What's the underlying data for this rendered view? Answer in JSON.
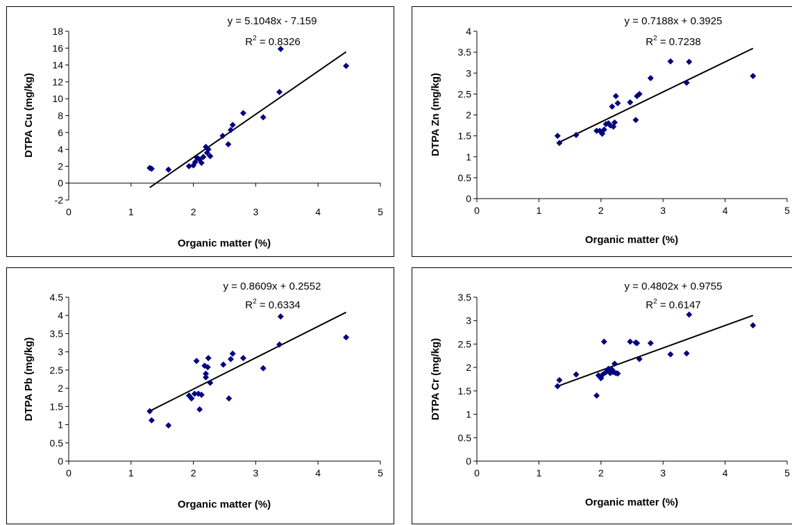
{
  "chart_data": [
    {
      "type": "scatter",
      "xlabel": "Organic matter (%)",
      "ylabel": "DTPA Cu (mg/kg)",
      "xlim": [
        0,
        5
      ],
      "ylim": [
        -2,
        18
      ],
      "xticks": [
        "0",
        "1",
        "2",
        "3",
        "4",
        "5"
      ],
      "yticks": [
        "-2",
        "0",
        "2",
        "4",
        "6",
        "8",
        "10",
        "12",
        "14",
        "16",
        "18"
      ],
      "equation": "y = 5.1048x - 7.159",
      "r2_label": "R",
      "r2_value": " = 0.8326",
      "trendline": {
        "slope": 5.1048,
        "intercept": -7.159,
        "x_range": [
          1.3,
          4.45
        ]
      },
      "points": [
        [
          1.3,
          1.8
        ],
        [
          1.33,
          1.7
        ],
        [
          1.6,
          1.6
        ],
        [
          1.93,
          2.0
        ],
        [
          2.0,
          2.1
        ],
        [
          2.03,
          2.5
        ],
        [
          2.06,
          3.0
        ],
        [
          2.1,
          2.8
        ],
        [
          2.13,
          2.4
        ],
        [
          2.16,
          3.1
        ],
        [
          2.2,
          4.3
        ],
        [
          2.22,
          3.6
        ],
        [
          2.24,
          4.0
        ],
        [
          2.27,
          3.2
        ],
        [
          2.47,
          5.6
        ],
        [
          2.56,
          4.6
        ],
        [
          2.6,
          6.3
        ],
        [
          2.63,
          6.9
        ],
        [
          2.8,
          8.3
        ],
        [
          3.12,
          7.8
        ],
        [
          3.38,
          10.8
        ],
        [
          3.4,
          15.9
        ],
        [
          4.45,
          13.9
        ]
      ],
      "color": "#000080",
      "trend_color": "#000000",
      "grid": false
    },
    {
      "type": "scatter",
      "xlabel": "Organic matter (%)",
      "ylabel": "DTPA Zn (mg/kg)",
      "xlim": [
        0,
        5
      ],
      "ylim": [
        0,
        4
      ],
      "xticks": [
        "0",
        "1",
        "2",
        "3",
        "4",
        "5"
      ],
      "yticks": [
        "0",
        "0.5",
        "1",
        "1.5",
        "2",
        "2.5",
        "3",
        "3.5",
        "4"
      ],
      "equation": "y = 0.7188x + 0.3925",
      "r2_label": "R",
      "r2_value": " = 0.7238",
      "trendline": {
        "slope": 0.7188,
        "intercept": 0.3925,
        "x_range": [
          1.3,
          4.45
        ]
      },
      "points": [
        [
          1.3,
          1.5
        ],
        [
          1.33,
          1.33
        ],
        [
          1.6,
          1.52
        ],
        [
          1.93,
          1.62
        ],
        [
          1.98,
          1.62
        ],
        [
          2.02,
          1.55
        ],
        [
          2.05,
          1.65
        ],
        [
          2.08,
          1.78
        ],
        [
          2.12,
          1.8
        ],
        [
          2.15,
          1.75
        ],
        [
          2.18,
          2.2
        ],
        [
          2.2,
          1.72
        ],
        [
          2.22,
          1.82
        ],
        [
          2.24,
          2.45
        ],
        [
          2.27,
          2.28
        ],
        [
          2.47,
          2.3
        ],
        [
          2.56,
          1.88
        ],
        [
          2.58,
          2.45
        ],
        [
          2.62,
          2.5
        ],
        [
          2.8,
          2.88
        ],
        [
          3.12,
          3.28
        ],
        [
          3.38,
          2.77
        ],
        [
          3.42,
          3.27
        ],
        [
          4.45,
          2.93
        ]
      ],
      "color": "#000080",
      "trend_color": "#000000",
      "grid": false
    },
    {
      "type": "scatter",
      "xlabel": "Organic matter (%)",
      "ylabel": "DTPA Pb (mg/kg)",
      "xlim": [
        0,
        5
      ],
      "ylim": [
        0,
        4.5
      ],
      "xticks": [
        "0",
        "1",
        "2",
        "3",
        "4",
        "5"
      ],
      "yticks": [
        "0",
        "0.5",
        "1",
        "1.5",
        "2",
        "2.5",
        "3",
        "3.5",
        "4",
        "4.5"
      ],
      "equation": "y = 0.8609x + 0.2552",
      "r2_label": "R",
      "r2_value": " = 0.6334",
      "trendline": {
        "slope": 0.8609,
        "intercept": 0.2552,
        "x_range": [
          1.3,
          4.45
        ]
      },
      "points": [
        [
          1.3,
          1.37
        ],
        [
          1.33,
          1.12
        ],
        [
          1.6,
          0.98
        ],
        [
          1.93,
          1.8
        ],
        [
          1.97,
          1.72
        ],
        [
          2.02,
          1.85
        ],
        [
          2.05,
          2.75
        ],
        [
          2.08,
          1.85
        ],
        [
          2.1,
          1.42
        ],
        [
          2.13,
          1.82
        ],
        [
          2.18,
          2.62
        ],
        [
          2.2,
          2.3
        ],
        [
          2.2,
          2.4
        ],
        [
          2.23,
          2.58
        ],
        [
          2.24,
          2.83
        ],
        [
          2.27,
          2.15
        ],
        [
          2.48,
          2.65
        ],
        [
          2.57,
          1.72
        ],
        [
          2.6,
          2.8
        ],
        [
          2.63,
          2.95
        ],
        [
          2.8,
          2.83
        ],
        [
          3.12,
          2.55
        ],
        [
          3.38,
          3.2
        ],
        [
          3.4,
          3.97
        ],
        [
          4.45,
          3.4
        ]
      ],
      "color": "#000080",
      "trend_color": "#000000",
      "grid": false
    },
    {
      "type": "scatter",
      "xlabel": "Organic matter (%)",
      "ylabel": "DTPA Cr (mg/kg)",
      "xlim": [
        0,
        5
      ],
      "ylim": [
        0,
        3.5
      ],
      "xticks": [
        "0",
        "1",
        "2",
        "3",
        "4",
        "5"
      ],
      "yticks": [
        "0",
        "0.5",
        "1",
        "1.5",
        "2",
        "2.5",
        "3",
        "3.5"
      ],
      "equation": "y = 0.4802x + 0.9755",
      "r2_label": "R",
      "r2_value": " = 0.6147",
      "trendline": {
        "slope": 0.4802,
        "intercept": 0.9755,
        "x_range": [
          1.3,
          4.45
        ]
      },
      "points": [
        [
          1.3,
          1.6
        ],
        [
          1.33,
          1.73
        ],
        [
          1.6,
          1.85
        ],
        [
          1.93,
          1.4
        ],
        [
          1.96,
          1.83
        ],
        [
          2.0,
          1.77
        ],
        [
          2.03,
          1.85
        ],
        [
          2.05,
          2.55
        ],
        [
          2.08,
          1.9
        ],
        [
          2.12,
          1.97
        ],
        [
          2.15,
          1.88
        ],
        [
          2.18,
          1.95
        ],
        [
          2.2,
          1.9
        ],
        [
          2.22,
          2.08
        ],
        [
          2.24,
          1.88
        ],
        [
          2.27,
          1.87
        ],
        [
          2.47,
          2.55
        ],
        [
          2.56,
          2.53
        ],
        [
          2.58,
          2.52
        ],
        [
          2.62,
          2.18
        ],
        [
          2.8,
          2.52
        ],
        [
          3.12,
          2.28
        ],
        [
          3.38,
          2.3
        ],
        [
          3.42,
          3.13
        ],
        [
          4.45,
          2.9
        ]
      ],
      "color": "#000080",
      "trend_color": "#000000",
      "grid": false
    }
  ]
}
